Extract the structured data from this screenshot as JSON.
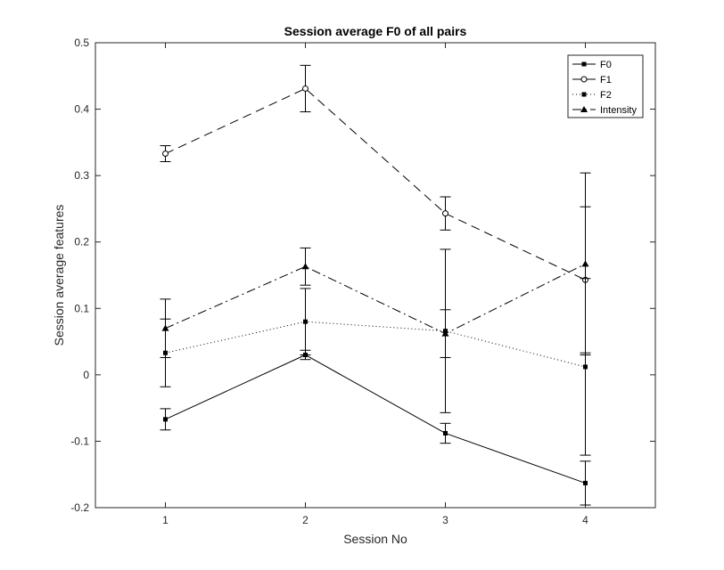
{
  "chart_data": {
    "type": "line",
    "title": "Session average F0 of all pairs",
    "xlabel": "Session No",
    "ylabel": "Session average features",
    "x": [
      1,
      2,
      3,
      4
    ],
    "xlim": [
      0.5,
      4.5
    ],
    "ylim": [
      -0.2,
      0.5
    ],
    "xticks": [
      "1",
      "2",
      "3",
      "4"
    ],
    "yticks": [
      "-0.2",
      "-0.1",
      "0",
      "0.1",
      "0.2",
      "0.3",
      "0.4",
      "0.5"
    ],
    "grid": false,
    "legend_position": "top-right",
    "series": [
      {
        "name": "F0",
        "values": [
          -0.067,
          0.03,
          -0.088,
          -0.163
        ],
        "err": [
          0.016,
          0.007,
          0.015,
          0.033
        ],
        "marker": "square-filled",
        "linestyle": "solid",
        "color": "#000000"
      },
      {
        "name": "F1",
        "values": [
          0.333,
          0.431,
          0.243,
          0.143
        ],
        "err": [
          0.012,
          0.035,
          0.025,
          0.11
        ],
        "marker": "circle-open",
        "linestyle": "dashed",
        "color": "#000000"
      },
      {
        "name": "F2",
        "values": [
          0.033,
          0.08,
          0.066,
          0.012
        ],
        "err": [
          0.051,
          0.05,
          0.123,
          0.133
        ],
        "marker": "square-filled",
        "linestyle": "dotted",
        "color": "#000000"
      },
      {
        "name": "Intensity",
        "values": [
          0.07,
          0.163,
          0.062,
          0.167
        ],
        "err": [
          0.044,
          0.028,
          0.036,
          0.137
        ],
        "marker": "triangle-filled",
        "linestyle": "dashdot",
        "color": "#000000"
      }
    ]
  }
}
